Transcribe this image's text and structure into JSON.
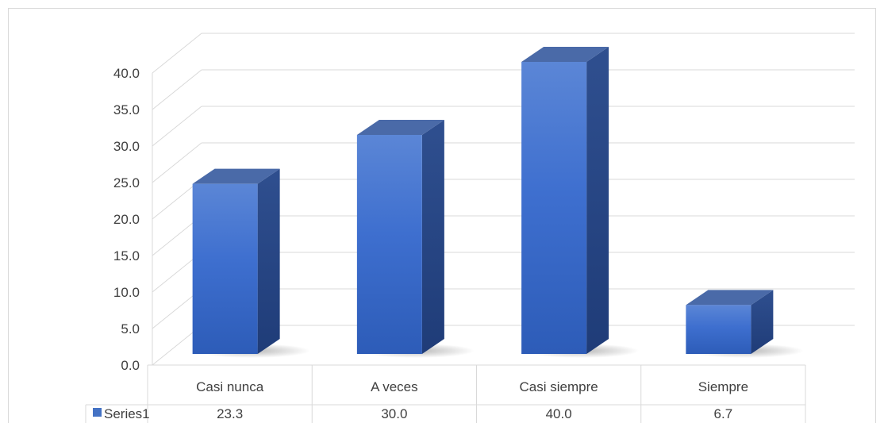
{
  "chart_data": {
    "type": "bar",
    "categories": [
      "Casi nunca",
      "A veces",
      "Casi siempre",
      "Siempre"
    ],
    "series": [
      {
        "name": "Series1",
        "values": [
          23.3,
          30.0,
          40.0,
          6.7
        ],
        "color": "#4472C4"
      }
    ],
    "yticks": [
      "0.0",
      "5.0",
      "10.0",
      "15.0",
      "20.0",
      "25.0",
      "30.0",
      "35.0",
      "40.0"
    ],
    "ylim": [
      0,
      40
    ],
    "grid": true,
    "data_table": true,
    "legend": "in-data-table"
  }
}
